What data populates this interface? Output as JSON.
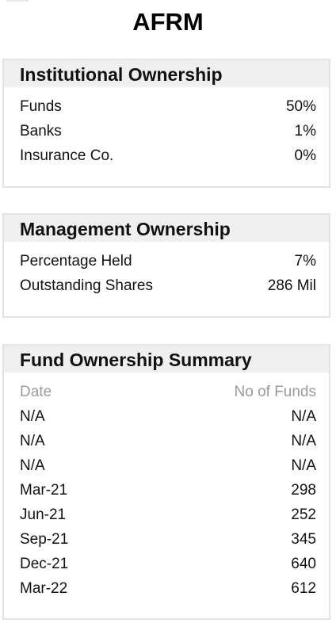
{
  "ticker": "AFRM",
  "institutional_ownership": {
    "title": "Institutional Ownership",
    "rows": [
      {
        "label": "Funds",
        "value": "50%"
      },
      {
        "label": "Banks",
        "value": "1%"
      },
      {
        "label": "Insurance Co.",
        "value": "0%"
      }
    ]
  },
  "management_ownership": {
    "title": "Management Ownership",
    "rows": [
      {
        "label": "Percentage Held",
        "value": "7%"
      },
      {
        "label": "Outstanding Shares",
        "value": "286 Mil"
      }
    ]
  },
  "fund_ownership_summary": {
    "title": "Fund Ownership Summary",
    "columns": [
      "Date",
      "No of Funds"
    ],
    "rows": [
      {
        "date": "N/A",
        "funds": "N/A"
      },
      {
        "date": "N/A",
        "funds": "N/A"
      },
      {
        "date": "N/A",
        "funds": "N/A"
      },
      {
        "date": "Mar-21",
        "funds": "298"
      },
      {
        "date": "Jun-21",
        "funds": "252"
      },
      {
        "date": "Sep-21",
        "funds": "345"
      },
      {
        "date": "Dec-21",
        "funds": "640"
      },
      {
        "date": "Mar-22",
        "funds": "612"
      }
    ]
  }
}
